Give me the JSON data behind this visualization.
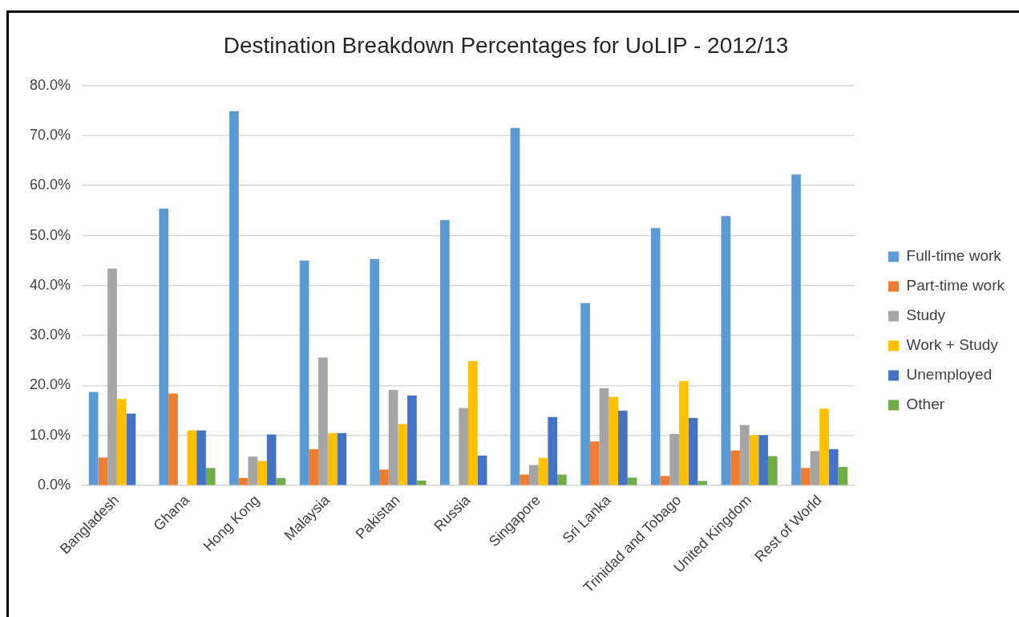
{
  "chart_data": {
    "type": "bar",
    "title": "Destination Breakdown Percentages for UoLIP - 2012/13",
    "categories": [
      "Bangladesh",
      "Ghana",
      "Hong Kong",
      "Malaysia",
      "Pakistan",
      "Russia",
      "Singapore",
      "Sri Lanka",
      "Trinidad and Tobago",
      "United Kingdom",
      "Rest of World"
    ],
    "series": [
      {
        "name": "Full-time work",
        "color": "#5b9bd5",
        "values": [
          18.7,
          55.4,
          74.9,
          45.0,
          45.3,
          53.1,
          71.5,
          36.5,
          51.5,
          53.9,
          62.2
        ]
      },
      {
        "name": "Part-time work",
        "color": "#ed7d31",
        "values": [
          5.6,
          18.4,
          1.5,
          7.3,
          3.2,
          null,
          2.2,
          8.8,
          1.9,
          7.0,
          3.5
        ]
      },
      {
        "name": "Study",
        "color": "#a5a5a5",
        "values": [
          43.4,
          null,
          5.8,
          25.6,
          19.1,
          15.5,
          4.1,
          19.5,
          10.3,
          12.1,
          6.9
        ]
      },
      {
        "name": "Work + Study",
        "color": "#ffc000",
        "values": [
          17.3,
          11.0,
          4.9,
          10.5,
          12.3,
          24.9,
          5.5,
          17.7,
          20.9,
          10.1,
          15.4
        ]
      },
      {
        "name": "Unemployed",
        "color": "#4472c4",
        "values": [
          14.4,
          11.0,
          10.2,
          10.5,
          18.0,
          6.0,
          13.7,
          15.0,
          13.5,
          10.1,
          7.3
        ]
      },
      {
        "name": "Other",
        "color": "#70ad47",
        "values": [
          null,
          3.5,
          1.5,
          null,
          1.0,
          null,
          2.2,
          1.6,
          0.9,
          5.9,
          3.7
        ]
      }
    ],
    "ylim": [
      0,
      80
    ],
    "yticks": [
      {
        "value": 0,
        "label": "0.0%"
      },
      {
        "value": 10,
        "label": "10.0%"
      },
      {
        "value": 20,
        "label": "20.0%"
      },
      {
        "value": 30,
        "label": "30.0%"
      },
      {
        "value": 40,
        "label": "40.0%"
      },
      {
        "value": 50,
        "label": "50.0%"
      },
      {
        "value": 60,
        "label": "60.0%"
      },
      {
        "value": 70,
        "label": "70.0%"
      },
      {
        "value": 80,
        "label": "80.0%"
      }
    ],
    "grid": "y",
    "legend": "right"
  }
}
